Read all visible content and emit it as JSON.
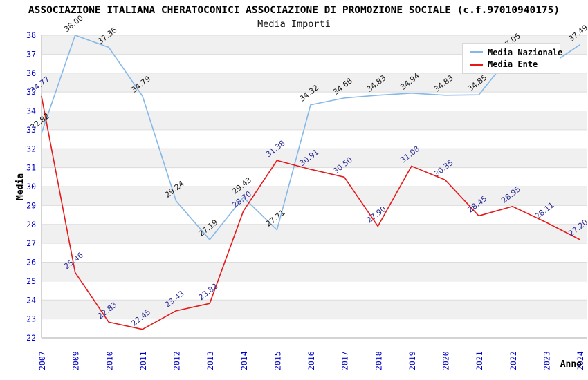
{
  "header": {
    "title": "ASSOCIAZIONE ITALIANA CHERATOCONICI ASSOCIAZIONE DI PROMOZIONE SOCIALE (c.f.97010940175)",
    "subtitle": "Media Importi"
  },
  "chart_data": {
    "type": "line",
    "title": "Media Importi",
    "xlabel": "Anno",
    "ylabel": "Media",
    "ylim": [
      22,
      38
    ],
    "y_tick_step": 1,
    "grid": "horizontal-alternating-bands",
    "legend_position": "top-right",
    "categories": [
      "2007",
      "2009",
      "2010",
      "2011",
      "2012",
      "2013",
      "2014",
      "2015",
      "2016",
      "2017",
      "2018",
      "2019",
      "2020",
      "2021",
      "2022",
      "2023",
      "2024"
    ],
    "series": [
      {
        "name": "Media Nazionale",
        "color": "#85b8e8",
        "label_color": "#1a1a1a",
        "values": [
          32.82,
          38.0,
          37.36,
          34.79,
          29.24,
          27.19,
          29.43,
          27.71,
          34.32,
          34.68,
          34.83,
          34.94,
          34.83,
          34.85,
          37.05,
          36.3,
          37.49
        ]
      },
      {
        "name": "Media Ente",
        "color": "#e51919",
        "label_color": "#2b2b94",
        "values": [
          34.77,
          25.46,
          22.83,
          22.45,
          23.43,
          23.82,
          28.7,
          31.38,
          30.91,
          30.5,
          27.9,
          31.08,
          30.35,
          28.45,
          28.95,
          28.11,
          27.2
        ]
      }
    ],
    "colors": {
      "tick_labels": "#0000cc",
      "band_gray": "#f0f0f0",
      "gridline": "#dcdcdc",
      "axis_line": "#a8a8a8"
    }
  }
}
